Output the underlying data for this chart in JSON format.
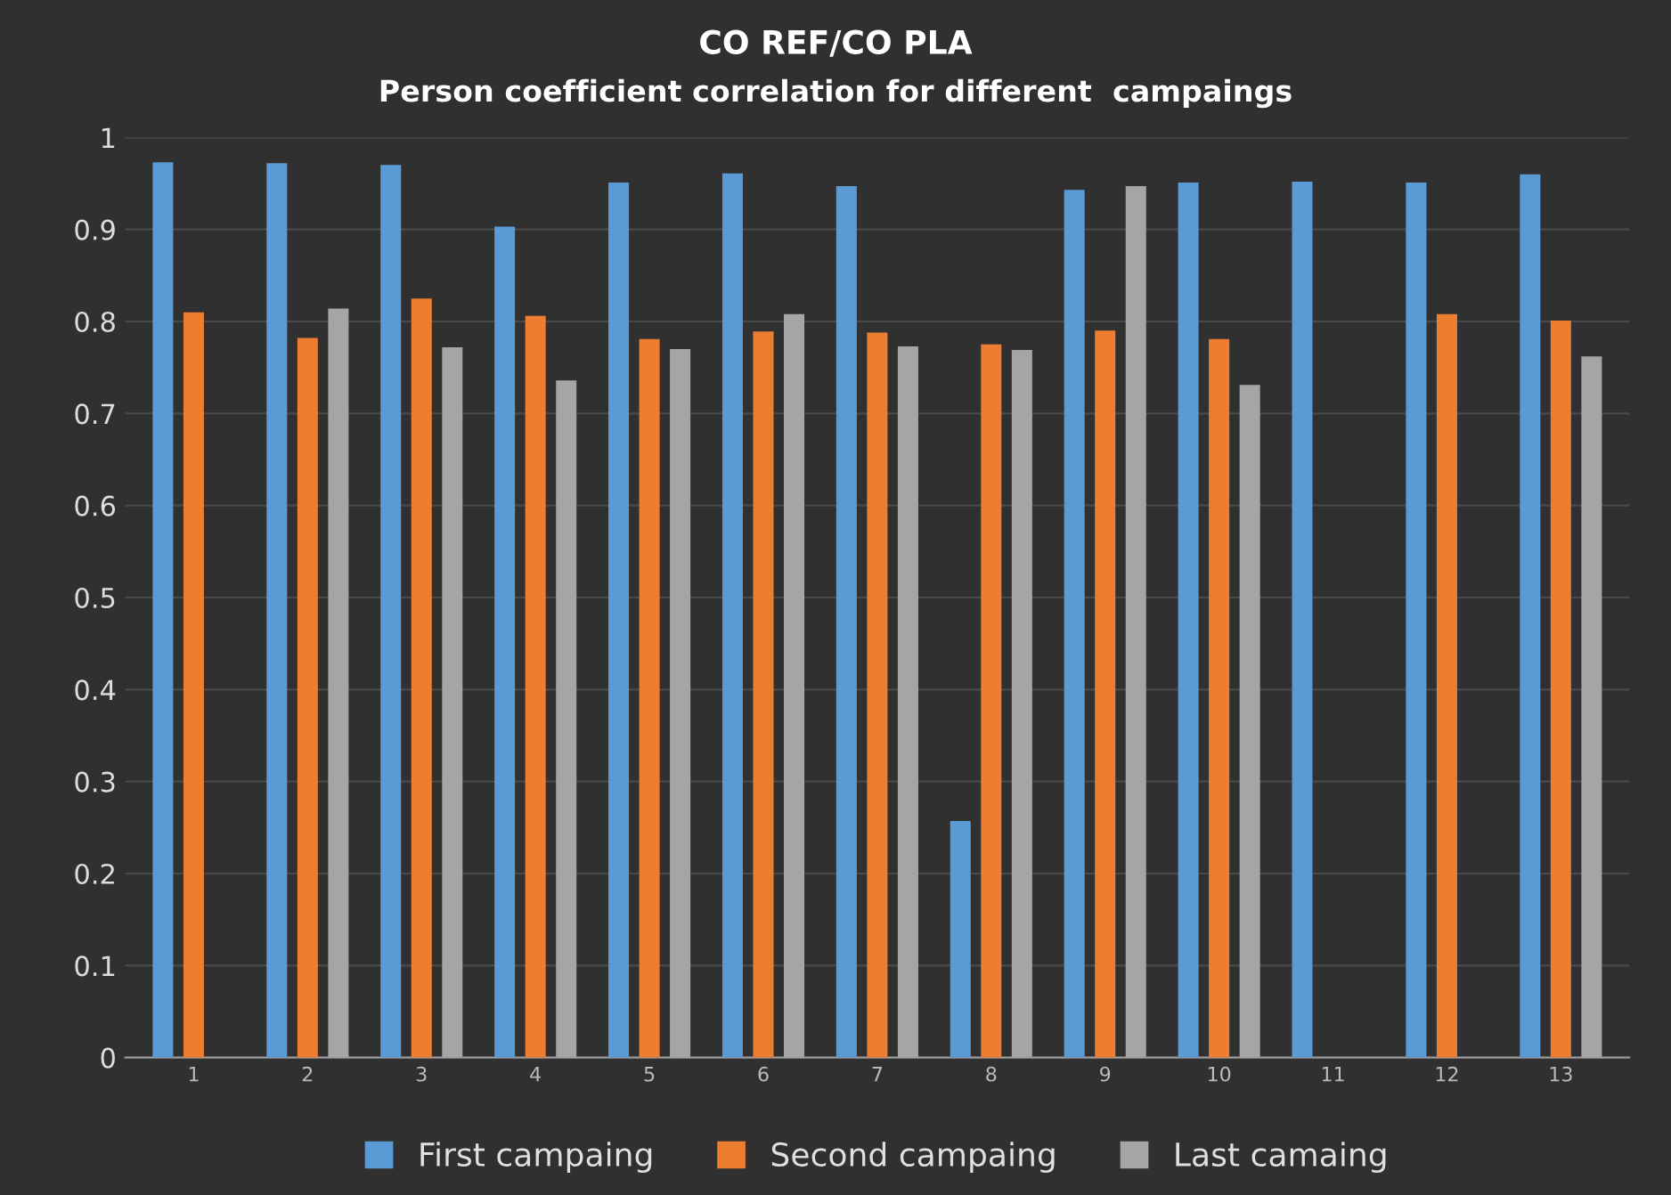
{
  "chart_data": {
    "type": "bar",
    "title": "CO REF/CO PLA",
    "subtitle": "Person coefficient correlation for different  campaings",
    "categories": [
      "1",
      "2",
      "3",
      "4",
      "5",
      "6",
      "7",
      "8",
      "9",
      "10",
      "11",
      "12",
      "13"
    ],
    "series": [
      {
        "name": "First campaing",
        "color": "#5b9bd5",
        "values": [
          0.973,
          0.972,
          0.97,
          0.903,
          0.951,
          0.961,
          0.947,
          0.257,
          0.943,
          0.951,
          0.952,
          0.951,
          0.96
        ]
      },
      {
        "name": "Second campaing",
        "color": "#ed7d31",
        "values": [
          0.81,
          0.782,
          0.825,
          0.806,
          0.781,
          0.789,
          0.788,
          0.775,
          0.79,
          0.781,
          null,
          0.808,
          0.801
        ]
      },
      {
        "name": "Last camaing",
        "color": "#a5a5a5",
        "values": [
          null,
          0.814,
          0.772,
          0.736,
          0.77,
          0.808,
          0.773,
          0.769,
          0.947,
          0.731,
          null,
          null,
          0.762
        ]
      }
    ],
    "ylim": [
      0,
      1
    ],
    "yticks": [
      0,
      0.1,
      0.2,
      0.3,
      0.4,
      0.5,
      0.6,
      0.7,
      0.8,
      0.9,
      1
    ],
    "grid": "y",
    "legend": "bottom"
  }
}
